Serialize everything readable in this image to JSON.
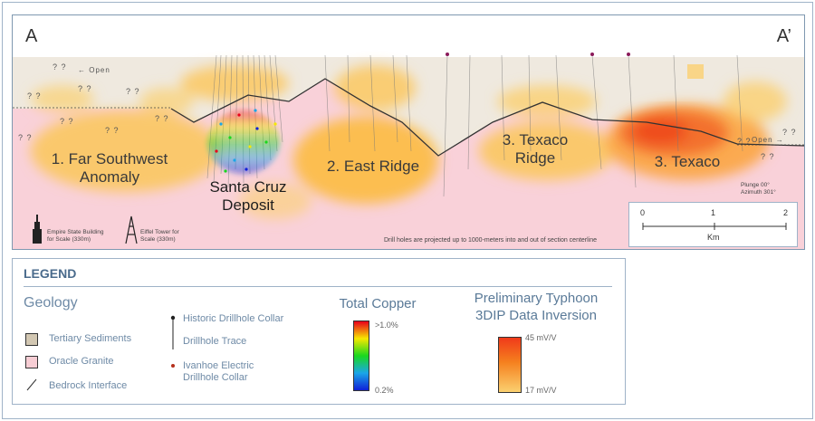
{
  "section": {
    "label_start": "A",
    "label_end": "A’",
    "open_left": "←  Open",
    "open_right": "Open →",
    "unknown": "? ?",
    "zones": {
      "far_southwest": "1. Far Southwest\nAnomaly",
      "east_ridge": "2. East Ridge",
      "texaco_ridge": "3. Texaco\nRidge",
      "texaco": "3. Texaco"
    },
    "deposit": "Santa Cruz\nDeposit",
    "plunge": "Plunge 00°\nAzimuth 301°",
    "scale_refs": {
      "empire": "Empire State Building\nfor Scale (330m)",
      "eiffel": "Eiffel Tower for\nScale (330m)"
    },
    "note": "Drill holes are projected up to 1000-meters into and out of section centerline"
  },
  "scale_bar": {
    "ticks": [
      "0",
      "1",
      "2"
    ],
    "unit": "Km"
  },
  "legend": {
    "title": "LEGEND",
    "geology_title": "Geology",
    "geology_items": [
      {
        "label": "Tertiary Sediments",
        "color": "#d2c7b2"
      },
      {
        "label": "Oracle Granite",
        "color": "#f7cdd4"
      },
      {
        "label": "Bedrock Interface"
      }
    ],
    "drill_items": {
      "collar": "Historic Drillhole Collar",
      "trace": "Drillhole Trace",
      "ivanhoe": "Ivanhoe Electric\nDrillhole Collar"
    },
    "copper": {
      "title": "Total Copper",
      "max": ">1.0%",
      "min": "0.2%"
    },
    "typhoon": {
      "title": "Preliminary Typhoon\n3DIP Data Inversion",
      "max": "45 mV/V",
      "min": "17 mV/V"
    }
  },
  "colors": {
    "sediment": "#ece6da",
    "granite": "#f9d1d9",
    "anomaly_light": "#fbcf6e",
    "anomaly_strong": "#f04a20",
    "frame": "#9fb3c8"
  }
}
